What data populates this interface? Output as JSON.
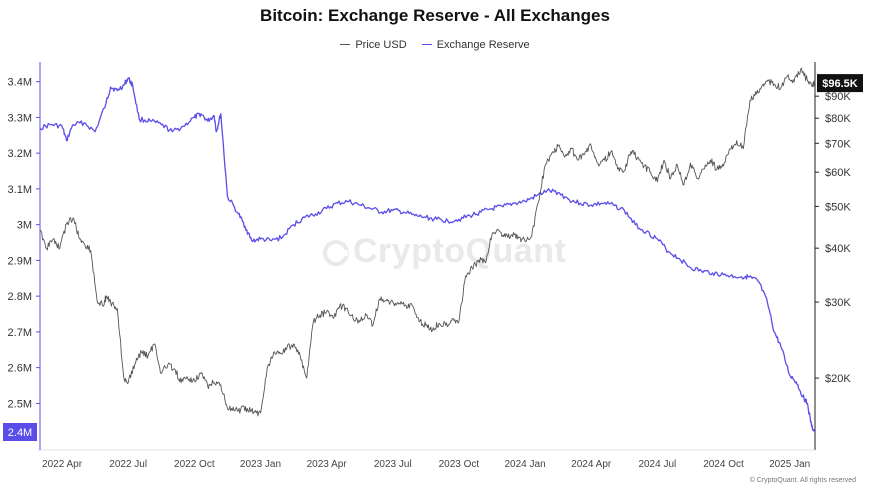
{
  "chart_data": {
    "type": "line",
    "title": "Bitcoin: Exchange Reserve - All Exchanges",
    "legend": [
      {
        "name": "Price USD",
        "color": "#555555"
      },
      {
        "name": "Exchange Reserve",
        "color": "#5b4ee8"
      }
    ],
    "left_axis": {
      "ticks": [
        {
          "value": 3400000,
          "label": "3.4M"
        },
        {
          "value": 3300000,
          "label": "3.3M"
        },
        {
          "value": 3200000,
          "label": "3.2M"
        },
        {
          "value": 3100000,
          "label": "3.1M"
        },
        {
          "value": 3000000,
          "label": "3M"
        },
        {
          "value": 2900000,
          "label": "2.9M"
        },
        {
          "value": 2800000,
          "label": "2.8M"
        },
        {
          "value": 2700000,
          "label": "2.7M"
        },
        {
          "value": 2600000,
          "label": "2.6M"
        },
        {
          "value": 2500000,
          "label": "2.5M"
        }
      ],
      "ylim": [
        2420000,
        3455000
      ],
      "current_label": "2.4M",
      "current_value": 2420000
    },
    "right_axis": {
      "scale": "log",
      "ticks": [
        {
          "value": 90000,
          "label": "$90K"
        },
        {
          "value": 80000,
          "label": "$80K"
        },
        {
          "value": 70000,
          "label": "$70K"
        },
        {
          "value": 60000,
          "label": "$60K"
        },
        {
          "value": 50000,
          "label": "$50K"
        },
        {
          "value": 40000,
          "label": "$40K"
        },
        {
          "value": 30000,
          "label": "$30K"
        },
        {
          "value": 20000,
          "label": "$20K"
        }
      ],
      "ylim": [
        15000,
        108000
      ],
      "current_label": "$96.5K",
      "current_value": 96500
    },
    "x_ticks": [
      {
        "t": 3,
        "label": "2022 Apr"
      },
      {
        "t": 6,
        "label": "2022 Jul"
      },
      {
        "t": 9,
        "label": "2022 Oct"
      },
      {
        "t": 12,
        "label": "2023 Jan"
      },
      {
        "t": 15,
        "label": "2023 Apr"
      },
      {
        "t": 18,
        "label": "2023 Jul"
      },
      {
        "t": 21,
        "label": "2023 Oct"
      },
      {
        "t": 24,
        "label": "2024 Jan"
      },
      {
        "t": 27,
        "label": "2024 Apr"
      },
      {
        "t": 30,
        "label": "2024 Jul"
      },
      {
        "t": 33,
        "label": "2024 Oct"
      },
      {
        "t": 36,
        "label": "2025 Jan"
      }
    ],
    "x_range": [
      2.0,
      37.15
    ],
    "series": [
      {
        "name": "Exchange Reserve",
        "axis": "left",
        "t": [
          2.0,
          2.5,
          3.0,
          3.2,
          3.5,
          4.0,
          4.5,
          5.0,
          5.2,
          5.5,
          5.8,
          6.0,
          6.2,
          6.5,
          7.0,
          7.5,
          8.0,
          8.5,
          9.0,
          9.3,
          9.6,
          9.9,
          10.0,
          10.2,
          10.5,
          11.0,
          11.3,
          11.6,
          12.0,
          12.5,
          13.0,
          13.5,
          14.0,
          14.5,
          15.0,
          15.5,
          16.0,
          16.5,
          17.0,
          17.5,
          18.0,
          18.5,
          19.0,
          19.5,
          20.0,
          20.5,
          21.0,
          21.5,
          22.0,
          22.5,
          23.0,
          23.5,
          24.0,
          24.5,
          25.0,
          25.5,
          26.0,
          26.5,
          27.0,
          27.5,
          28.0,
          28.5,
          29.0,
          29.5,
          30.0,
          30.5,
          31.0,
          31.5,
          32.0,
          32.5,
          33.0,
          33.5,
          34.0,
          34.3,
          34.6,
          35.0,
          35.3,
          35.6,
          36.0,
          36.3,
          36.6,
          36.8,
          37.0,
          37.15
        ],
        "values": [
          3270000,
          3280000,
          3275000,
          3235000,
          3280000,
          3285000,
          3260000,
          3340000,
          3385000,
          3375000,
          3390000,
          3410000,
          3390000,
          3295000,
          3290000,
          3280000,
          3260000,
          3275000,
          3300000,
          3310000,
          3290000,
          3305000,
          3260000,
          3310000,
          3080000,
          3030000,
          2995000,
          2955000,
          2960000,
          2955000,
          2965000,
          3000000,
          3020000,
          3030000,
          3045000,
          3060000,
          3065000,
          3055000,
          3045000,
          3035000,
          3040000,
          3035000,
          3025000,
          3020000,
          3015000,
          3010000,
          3015000,
          3025000,
          3035000,
          3045000,
          3050000,
          3060000,
          3065000,
          3080000,
          3095000,
          3090000,
          3070000,
          3060000,
          3055000,
          3060000,
          3055000,
          3040000,
          3000000,
          2980000,
          2960000,
          2925000,
          2905000,
          2880000,
          2870000,
          2865000,
          2860000,
          2855000,
          2855000,
          2850000,
          2840000,
          2780000,
          2700000,
          2660000,
          2580000,
          2560000,
          2520000,
          2500000,
          2435000,
          2420000
        ]
      },
      {
        "name": "Price USD",
        "axis": "right",
        "t": [
          2.0,
          2.3,
          2.6,
          2.9,
          3.2,
          3.5,
          3.8,
          4.0,
          4.3,
          4.6,
          4.9,
          5.0,
          5.2,
          5.5,
          5.8,
          6.0,
          6.3,
          6.6,
          6.9,
          7.2,
          7.5,
          7.8,
          8.1,
          8.4,
          8.7,
          9.0,
          9.3,
          9.6,
          9.9,
          10.2,
          10.5,
          10.8,
          11.1,
          11.4,
          11.7,
          12.0,
          12.3,
          12.6,
          12.9,
          13.2,
          13.5,
          13.8,
          14.1,
          14.4,
          14.7,
          15.0,
          15.3,
          15.6,
          15.9,
          16.2,
          16.5,
          16.8,
          17.1,
          17.4,
          17.7,
          18.0,
          18.3,
          18.6,
          18.9,
          19.2,
          19.5,
          19.8,
          20.1,
          20.4,
          20.7,
          21.0,
          21.3,
          21.6,
          21.9,
          22.2,
          22.5,
          22.8,
          23.1,
          23.4,
          23.7,
          24.0,
          24.3,
          24.6,
          24.9,
          25.2,
          25.5,
          25.8,
          26.1,
          26.4,
          26.7,
          27.0,
          27.3,
          27.6,
          27.9,
          28.2,
          28.5,
          28.8,
          29.1,
          29.4,
          29.7,
          30.0,
          30.3,
          30.6,
          30.9,
          31.2,
          31.5,
          31.8,
          32.1,
          32.4,
          32.7,
          33.0,
          33.3,
          33.6,
          33.9,
          34.2,
          34.5,
          34.8,
          35.0,
          35.3,
          35.6,
          35.9,
          36.2,
          36.5,
          36.8,
          37.0,
          37.15
        ],
        "values": [
          44000,
          40000,
          42000,
          40000,
          45500,
          47000,
          42000,
          41000,
          39500,
          30000,
          29500,
          31000,
          30000,
          29000,
          20000,
          19500,
          21500,
          23000,
          22500,
          24000,
          20500,
          21500,
          21000,
          19500,
          20000,
          19800,
          20500,
          19200,
          19500,
          19300,
          17000,
          16800,
          16900,
          17000,
          16700,
          16600,
          21000,
          23000,
          22800,
          23500,
          24000,
          22500,
          20000,
          27000,
          28000,
          28500,
          27500,
          29500,
          29000,
          27500,
          27000,
          28000,
          26500,
          30500,
          30200,
          30000,
          29800,
          29500,
          29300,
          27000,
          26500,
          25800,
          26800,
          26500,
          27500,
          27000,
          34500,
          36000,
          37500,
          37000,
          43000,
          44000,
          42500,
          43000,
          42500,
          41500,
          42500,
          51000,
          62000,
          66000,
          69000,
          65000,
          68000,
          64000,
          66000,
          69000,
          63000,
          64000,
          67000,
          61000,
          60500,
          67000,
          65000,
          62000,
          60000,
          57000,
          64000,
          58000,
          62500,
          56000,
          63000,
          58000,
          61000,
          64000,
          61000,
          62000,
          68000,
          71000,
          68000,
          88000,
          91000,
          96000,
          98000,
          96000,
          94000,
          100000,
          97000,
          104000,
          98000,
          95000,
          96500
        ]
      }
    ],
    "watermark": "CryptoQuant",
    "credit": "© CryptoQuant. All rights reserved",
    "grid": false
  }
}
